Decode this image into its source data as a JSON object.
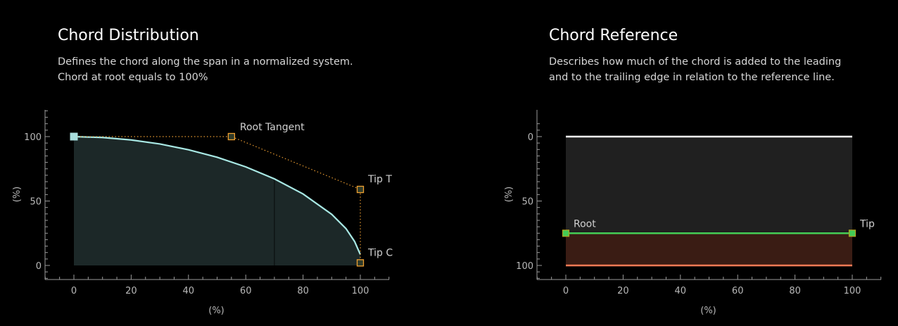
{
  "panels": [
    {
      "title": "Chord Distribution",
      "desc_lines": [
        "Defines the chord along the span in a normalized system.",
        "Chord at root equals to 100%"
      ]
    },
    {
      "title": "Chord Reference",
      "desc_lines": [
        "Describes how much of the chord is added to the leading",
        "and to the trailing edge in relation to the reference line."
      ]
    }
  ],
  "chart_data": [
    {
      "type": "area",
      "xlabel": "(%)",
      "ylabel": "(%)",
      "xlim": [
        -10,
        110
      ],
      "ylim": [
        -10,
        120
      ],
      "xticks": [
        0,
        20,
        40,
        60,
        80,
        100
      ],
      "yticks": [
        0,
        50,
        100
      ],
      "series": [
        {
          "x": [
            0,
            10,
            20,
            30,
            40,
            50,
            60,
            70,
            80,
            90,
            95,
            98,
            100
          ],
          "y": [
            100,
            99.3,
            97.4,
            94.3,
            89.8,
            84,
            76.5,
            67.2,
            55.5,
            39.7,
            28.6,
            18.6,
            8.5
          ]
        }
      ],
      "control_points": [
        {
          "label": "",
          "x": 0,
          "y": 100
        },
        {
          "label": "Root Tangent",
          "x": 55,
          "y": 100
        },
        {
          "label": "Tip T",
          "x": 100,
          "y": 59
        },
        {
          "label": "Tip C",
          "x": 100,
          "y": 2
        }
      ],
      "divider_x": 70,
      "colors": {
        "curve": "#a8e8e4",
        "fill": "#1c2828",
        "handle": "#f0a030",
        "handle_fill": "#2e3a2a",
        "root_handle": "#a8dede",
        "dotted": "#e89a30"
      }
    },
    {
      "type": "area",
      "xlabel": "(%)",
      "ylabel": "(%)",
      "xlim": [
        -10,
        110
      ],
      "ylim": [
        120,
        -10
      ],
      "xticks": [
        0,
        20,
        40,
        60,
        80,
        100
      ],
      "yticks": [
        0,
        50,
        100
      ],
      "lines": [
        {
          "x": [
            0,
            100
          ],
          "y": [
            0,
            0
          ],
          "color": "#ffffff"
        },
        {
          "x": [
            0,
            100
          ],
          "y": [
            75,
            75
          ],
          "color": "#44cc55"
        },
        {
          "x": [
            0,
            100
          ],
          "y": [
            100,
            100
          ],
          "color": "#ff7a55"
        }
      ],
      "points": [
        {
          "label": "Root",
          "x": 0,
          "y": 75
        },
        {
          "label": "Tip",
          "x": 100,
          "y": 75
        }
      ],
      "colors": {
        "top_fill": "#202020",
        "bottom_fill": "#3a1c14",
        "handle": "#44cc55",
        "handle_stroke": "#b0a020"
      }
    }
  ]
}
